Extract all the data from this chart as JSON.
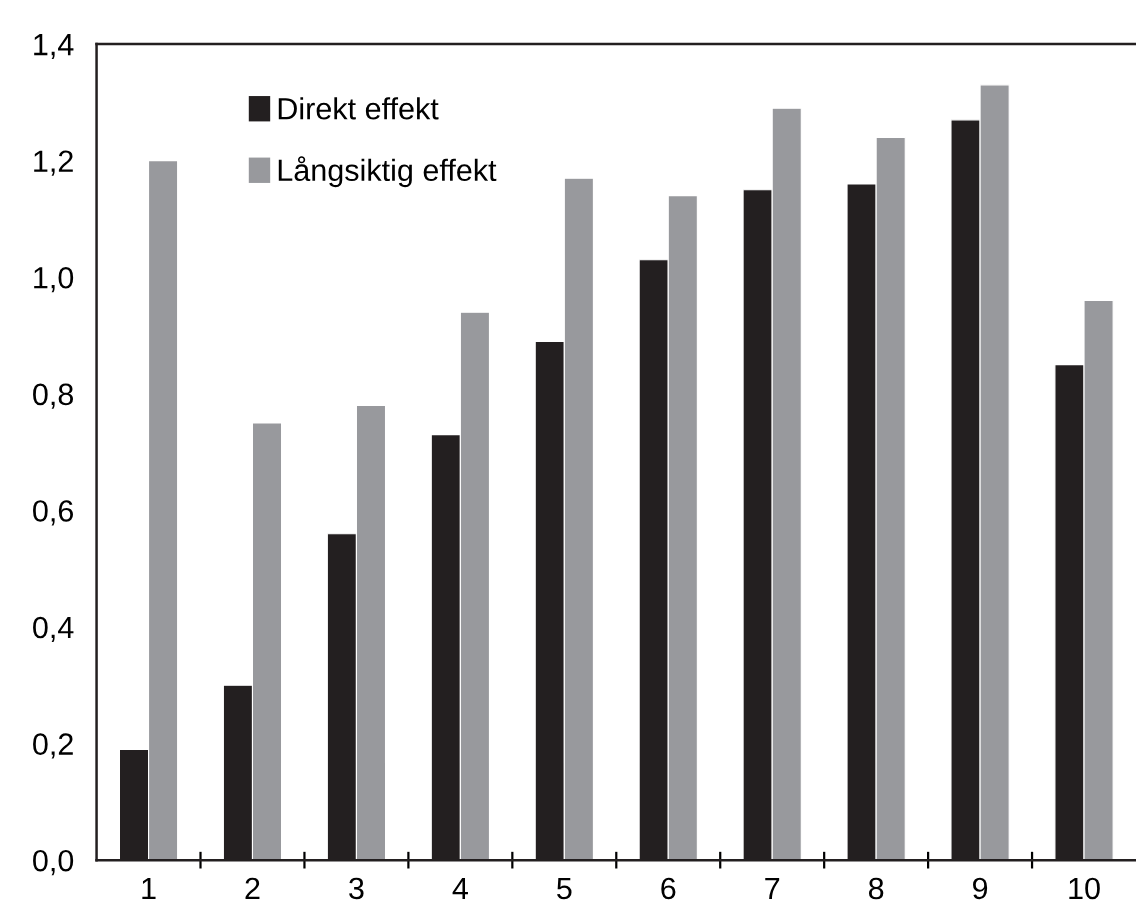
{
  "chart_data": {
    "type": "bar",
    "categories": [
      "1",
      "2",
      "3",
      "4",
      "5",
      "6",
      "7",
      "8",
      "9",
      "10"
    ],
    "series": [
      {
        "name": "Direkt effekt",
        "color": "#231f20",
        "values": [
          0.19,
          0.3,
          0.56,
          0.73,
          0.89,
          1.03,
          1.15,
          1.16,
          1.27,
          0.85
        ]
      },
      {
        "name": "Långsiktig effekt",
        "color": "#98999d",
        "values": [
          1.2,
          0.75,
          0.78,
          0.94,
          1.17,
          1.14,
          1.29,
          1.24,
          1.33,
          0.96
        ]
      }
    ],
    "ylim": [
      0,
      1.4
    ],
    "yticks": [
      {
        "value": 0,
        "label": "0,0"
      },
      {
        "value": 0.2,
        "label": "0,2"
      },
      {
        "value": 0.4,
        "label": "0,4"
      },
      {
        "value": 0.6,
        "label": "0,6"
      },
      {
        "value": 0.8,
        "label": "0,8"
      },
      {
        "value": 1.0,
        "label": "1,0"
      },
      {
        "value": 1.2,
        "label": "1,2"
      },
      {
        "value": 1.4,
        "label": "1,4"
      }
    ],
    "grid": false,
    "legend": "top left"
  }
}
